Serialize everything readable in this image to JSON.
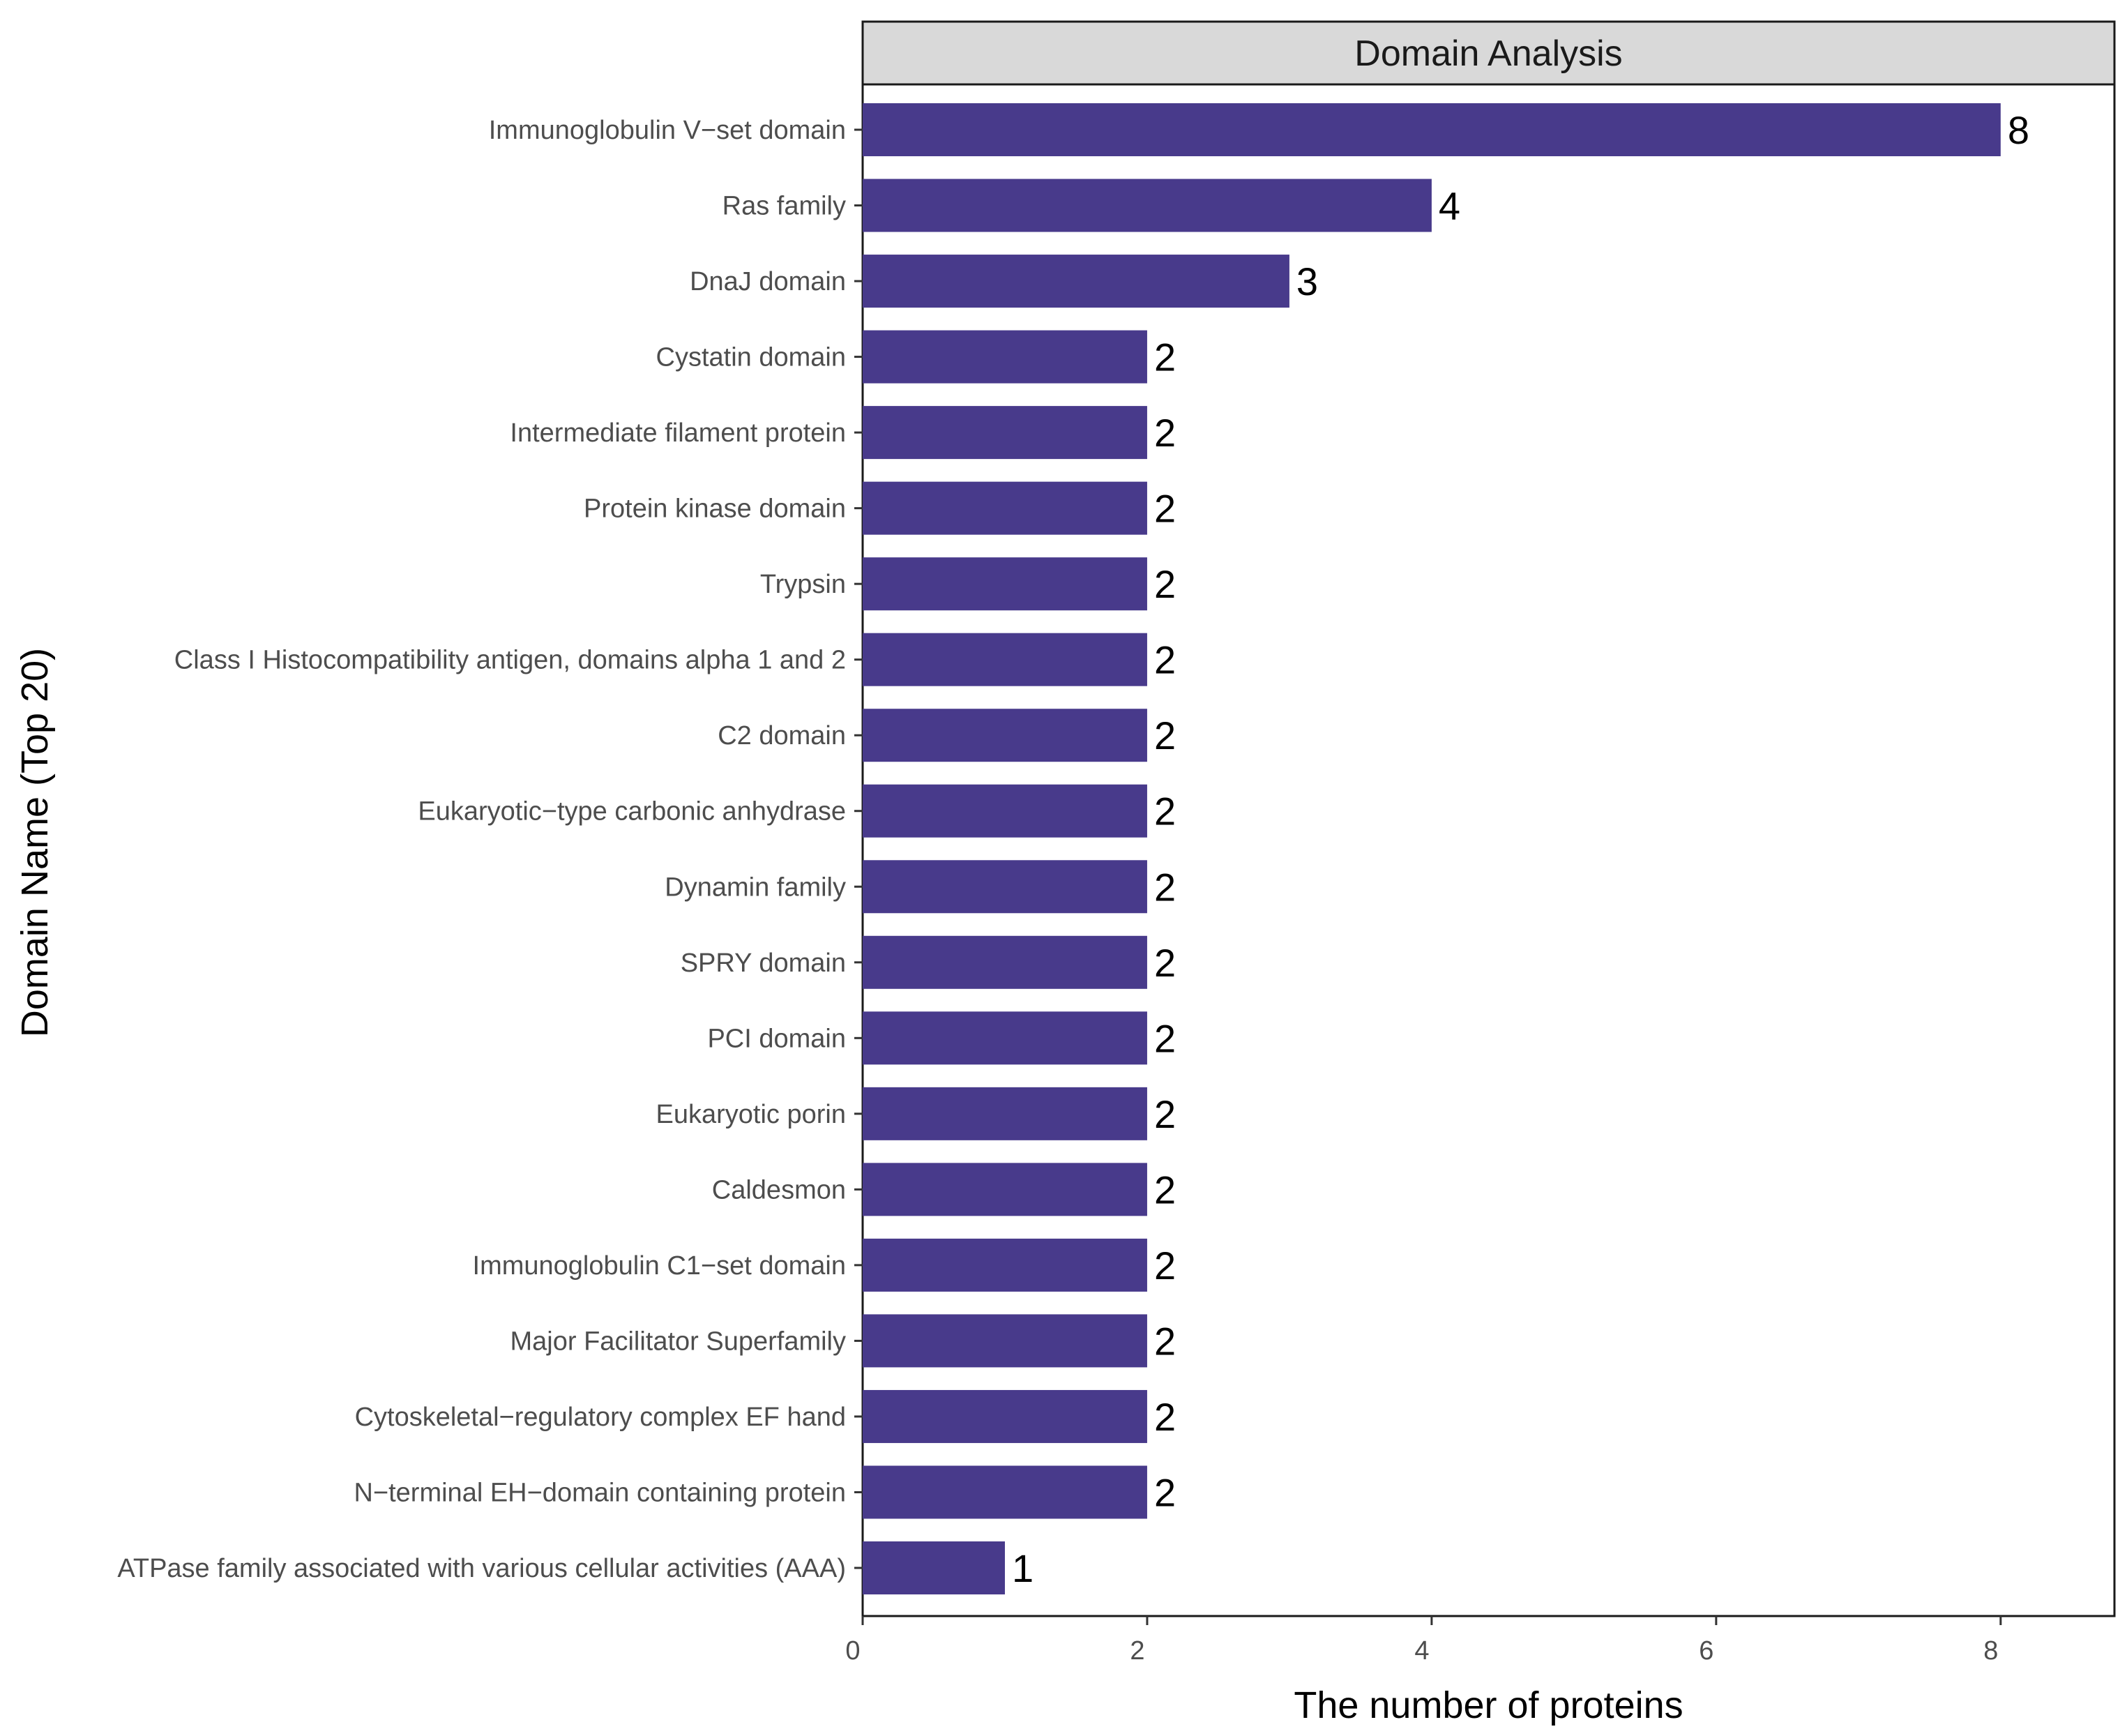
{
  "chart_data": {
    "type": "bar",
    "orientation": "horizontal",
    "title": "Domain Analysis",
    "xlabel": "The number of proteins",
    "ylabel": "Domain Name (Top 20)",
    "xlim": [
      0,
      8.8
    ],
    "xticks": [
      0,
      2,
      4,
      6,
      8
    ],
    "grid": false,
    "bar_color": "#483A8B",
    "categories": [
      "Immunoglobulin V−set domain",
      "Ras family",
      "DnaJ domain",
      "Cystatin domain",
      "Intermediate filament protein",
      "Protein kinase domain",
      "Trypsin",
      "Class I Histocompatibility antigen, domains alpha 1 and 2",
      "C2 domain",
      "Eukaryotic−type carbonic anhydrase",
      "Dynamin family",
      "SPRY domain",
      "PCI domain",
      "Eukaryotic porin",
      "Caldesmon",
      "Immunoglobulin C1−set domain",
      "Major Facilitator Superfamily",
      "Cytoskeletal−regulatory complex EF hand",
      "N−terminal EH−domain containing protein",
      "ATPase family associated with various cellular activities (AAA)"
    ],
    "values": [
      8,
      4,
      3,
      2,
      2,
      2,
      2,
      2,
      2,
      2,
      2,
      2,
      2,
      2,
      2,
      2,
      2,
      2,
      2,
      1
    ]
  }
}
